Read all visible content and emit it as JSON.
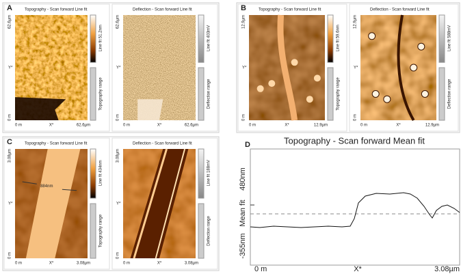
{
  "panels": [
    {
      "label": "A",
      "images": [
        {
          "title": "Topography - Scan forward   Line fit",
          "y_max": "62.6µm",
          "y_axis": "Y*",
          "y_min": "0 m",
          "x_min": "0 m",
          "x_axis": "X*",
          "x_max": "62.6µm",
          "scale": "Line fit 51.2nm",
          "range": "Topography range"
        },
        {
          "title": "Deflection - Scan forward   Line fit",
          "y_max": "62.6µm",
          "y_axis": "Y*",
          "y_min": "0 m",
          "x_min": "0 m",
          "x_axis": "X*",
          "x_max": "62.6µm",
          "scale": "Line fit 403mV",
          "range": "Deflection range"
        }
      ]
    },
    {
      "label": "B",
      "images": [
        {
          "title": "Topography - Scan forward   Line fit",
          "y_max": "12.9µm",
          "y_axis": "Y*",
          "y_min": "0 m",
          "x_min": "0 m",
          "x_axis": "X*",
          "x_max": "12.9µm",
          "scale": "Line fit 59.6nm",
          "range": "Topography range"
        },
        {
          "title": "Deflection - Scan forward   Line fit",
          "y_max": "12.9µm",
          "y_axis": "Y*",
          "y_min": "0 m",
          "x_min": "0 m",
          "x_axis": "X*",
          "x_max": "12.9µm",
          "scale": "Line fit 588mV",
          "range": "Deflection range"
        }
      ]
    },
    {
      "label": "C",
      "images": [
        {
          "title": "Topography - Scan forward   Line fit",
          "y_max": "3.08µm",
          "y_axis": "Y*",
          "y_min": "0 m",
          "x_min": "0 m",
          "x_axis": "X*",
          "x_max": "3.08µm",
          "scale": "Line fit 434nm",
          "range": "Topography range",
          "annotation": "884nm"
        },
        {
          "title": "Deflection - Scan forward   Line fit",
          "y_max": "3.08µm",
          "y_axis": "Y*",
          "y_min": "0 m",
          "x_min": "0 m",
          "x_axis": "X*",
          "x_max": "3.08µm",
          "scale": "Line fit 188mV",
          "range": "Deflection range"
        }
      ]
    }
  ],
  "profile": {
    "label": "D",
    "title": "Topography - Scan forward   Mean fit",
    "y_max": "480nm",
    "y_axis": "Mean fit",
    "y_min": "-355nm",
    "x_min": "0 m",
    "x_axis": "X*",
    "x_max": "3.08µm"
  }
}
